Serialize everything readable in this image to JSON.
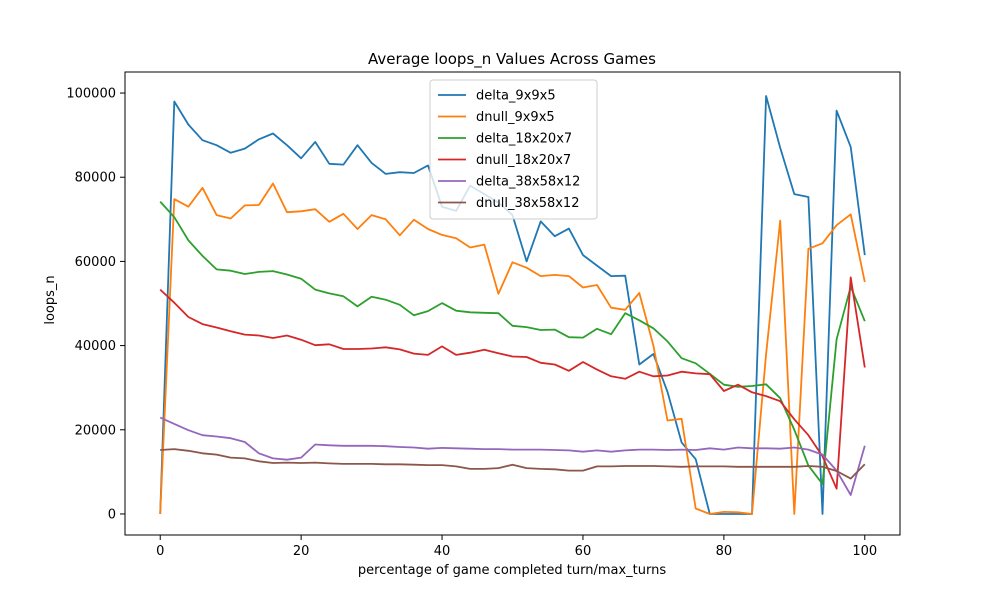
{
  "chart_data": {
    "type": "line",
    "title": "Average loops_n Values Across Games",
    "xlabel": "percentage of game completed turn/max_turns",
    "ylabel": "loops_n",
    "xlim": [
      -5,
      105
    ],
    "ylim": [
      -5000,
      105000
    ],
    "xticks": [
      0,
      20,
      40,
      60,
      80,
      100
    ],
    "yticks": [
      0,
      20000,
      40000,
      60000,
      80000,
      100000
    ],
    "grid": false,
    "legend_position": "top-center",
    "x": [
      0,
      2,
      4,
      6,
      8,
      10,
      12,
      14,
      16,
      18,
      20,
      22,
      24,
      26,
      28,
      30,
      32,
      34,
      36,
      38,
      40,
      42,
      44,
      46,
      48,
      50,
      52,
      54,
      56,
      58,
      60,
      62,
      64,
      66,
      68,
      70,
      72,
      74,
      76,
      78,
      80,
      82,
      84,
      86,
      88,
      90,
      92,
      94,
      96,
      98,
      100
    ],
    "series": [
      {
        "name": "delta_9x9x5",
        "color": "#1f77b4",
        "values": [
          0,
          98000,
          92500,
          88800,
          87600,
          85800,
          86800,
          89000,
          90400,
          87600,
          84500,
          88400,
          83200,
          83000,
          87600,
          83400,
          80800,
          81200,
          81000,
          82800,
          73000,
          72000,
          78000,
          76000,
          74000,
          71000,
          60000,
          69500,
          66000,
          67800,
          61500,
          59000,
          56500,
          56600,
          35500,
          38000,
          29000,
          17000,
          13000,
          0,
          0,
          0,
          0,
          99300,
          87000,
          76000,
          75300,
          0,
          95800,
          87200,
          61500
        ]
      },
      {
        "name": "dnull_9x9x5",
        "color": "#ff7f0e",
        "values": [
          0,
          74800,
          73000,
          77500,
          71000,
          70200,
          73300,
          73400,
          78500,
          71700,
          71900,
          72400,
          69400,
          71300,
          67700,
          71000,
          70000,
          66200,
          69900,
          67700,
          66300,
          65500,
          63300,
          64000,
          52300,
          59800,
          58500,
          56500,
          56800,
          56500,
          53800,
          54400,
          49000,
          48500,
          52500,
          40000,
          22200,
          22600,
          1300,
          0,
          500,
          400,
          0,
          38000,
          69700,
          0,
          63000,
          64300,
          68600,
          71200,
          55100
        ]
      },
      {
        "name": "delta_18x20x7",
        "color": "#2ca02c",
        "values": [
          74200,
          70500,
          65000,
          61300,
          58100,
          57800,
          57000,
          57500,
          57700,
          56900,
          55900,
          53300,
          52400,
          51700,
          49300,
          51600,
          50900,
          49700,
          47200,
          48200,
          50100,
          48300,
          47900,
          47800,
          47700,
          44700,
          44400,
          43700,
          43800,
          42000,
          41900,
          44000,
          42700,
          47700,
          46000,
          44100,
          41000,
          37000,
          35800,
          33300,
          30700,
          30200,
          30400,
          30800,
          27500,
          20000,
          11500,
          7100,
          41500,
          54000,
          45800
        ]
      },
      {
        "name": "dnull_18x20x7",
        "color": "#d62728",
        "values": [
          53300,
          50200,
          46800,
          45100,
          44300,
          43400,
          42600,
          42400,
          41800,
          42400,
          41400,
          40100,
          40300,
          39200,
          39200,
          39300,
          39600,
          39100,
          38100,
          37800,
          39800,
          37800,
          38300,
          39000,
          38200,
          37400,
          37300,
          35900,
          35500,
          34000,
          36100,
          34300,
          32700,
          32100,
          33800,
          32700,
          32900,
          33800,
          33400,
          33200,
          29200,
          30700,
          28900,
          28000,
          26800,
          22500,
          18700,
          13700,
          6000,
          56200,
          34800
        ]
      },
      {
        "name": "delta_38x58x12",
        "color": "#9467bd",
        "values": [
          22900,
          21400,
          19900,
          18700,
          18400,
          18000,
          17100,
          14400,
          13200,
          12900,
          13400,
          16500,
          16300,
          16200,
          16200,
          16200,
          16100,
          15900,
          15800,
          15500,
          15700,
          15600,
          15500,
          15400,
          15400,
          15300,
          15300,
          15300,
          15200,
          15100,
          14800,
          15100,
          14800,
          15100,
          15300,
          15300,
          15200,
          15300,
          15200,
          15600,
          15300,
          15800,
          15600,
          15600,
          15500,
          15800,
          15300,
          14100,
          10300,
          4500,
          16200
        ]
      },
      {
        "name": "dnull_38x58x12",
        "color": "#8c564b",
        "values": [
          15200,
          15400,
          15000,
          14400,
          14100,
          13400,
          13200,
          12500,
          12100,
          12200,
          12100,
          12200,
          12000,
          11900,
          11900,
          11900,
          11800,
          11800,
          11700,
          11600,
          11600,
          11300,
          10700,
          10700,
          10900,
          11700,
          10900,
          10700,
          10600,
          10300,
          10300,
          11300,
          11300,
          11400,
          11400,
          11400,
          11300,
          11200,
          11300,
          11300,
          11300,
          11200,
          11200,
          11200,
          11200,
          11200,
          11400,
          11200,
          10200,
          8400,
          11800
        ]
      }
    ]
  }
}
